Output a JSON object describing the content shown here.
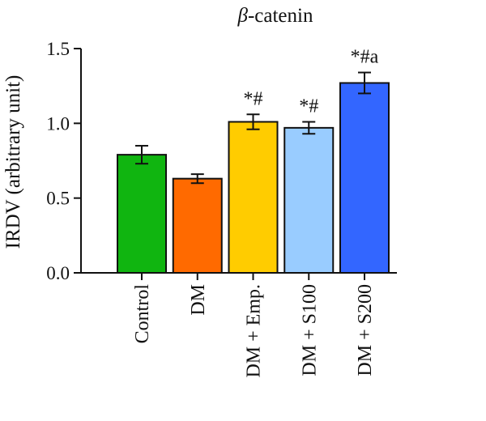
{
  "chart_data": {
    "type": "bar",
    "title": "β-catenin",
    "title_parts": {
      "greek": "β",
      "rest": "-catenin"
    },
    "xlabel": "",
    "ylabel": "IRDV (arbitrary unit)",
    "ylim": [
      0,
      1.5
    ],
    "yticks": [
      0.0,
      0.5,
      1.0,
      1.5
    ],
    "ytick_labels": [
      "0.0",
      "0.5",
      "1.0",
      "1.5"
    ],
    "grid": false,
    "categories": [
      "Control",
      "DM",
      "DM + Emp.",
      "DM + S100",
      "DM + S200"
    ],
    "values": [
      0.79,
      0.63,
      1.01,
      0.97,
      1.27
    ],
    "errors": [
      0.06,
      0.03,
      0.05,
      0.04,
      0.07
    ],
    "colors": [
      "#10b510",
      "#ff6a00",
      "#ffcc00",
      "#99ccff",
      "#3366ff"
    ],
    "annotations": [
      "",
      "",
      "*#",
      "*#",
      "*#a"
    ]
  }
}
